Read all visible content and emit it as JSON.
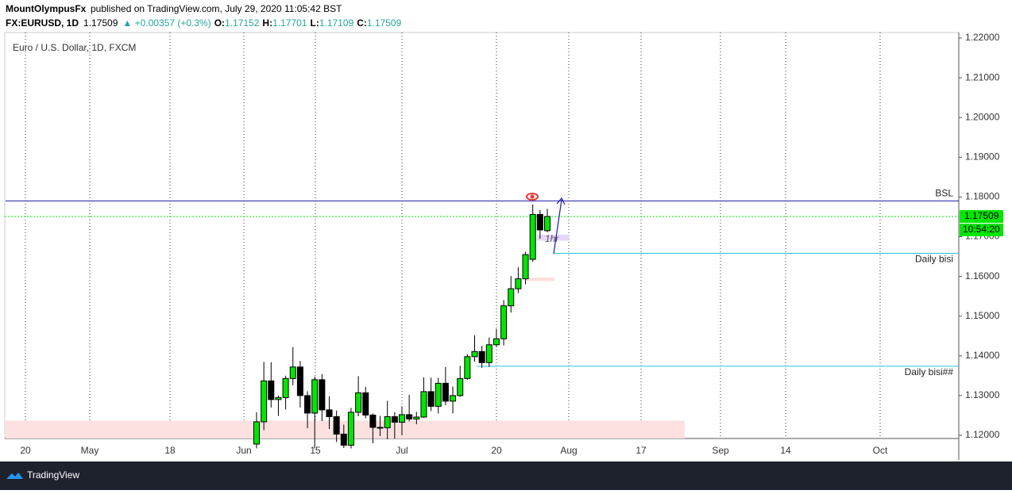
{
  "header": {
    "author": "MountOlympusFx",
    "published": "published on TradingView.com, July 29, 2020 11:05:42 BST",
    "symbol": "FX:EURUSD, 1D",
    "last": "1.17509",
    "change": "▲ +0.00357 (+0.3%)",
    "ohlc": [
      {
        "label": "O:",
        "value": "1.17152"
      },
      {
        "label": "H:",
        "value": "1.17701"
      },
      {
        "label": "L:",
        "value": "1.17109"
      },
      {
        "label": "C:",
        "value": "1.17509"
      }
    ]
  },
  "footer": {
    "brand": "TradingView"
  },
  "chart_data": {
    "type": "candlestick",
    "title": "Euro / U.S. Dollar, 1D, FXCM",
    "x": [
      "Jun 3",
      "Jun 4",
      "Jun 5",
      "Jun 8",
      "Jun 9",
      "Jun 10",
      "Jun 11",
      "Jun 12",
      "Jun 15",
      "Jun 16",
      "Jun 17",
      "Jun 18",
      "Jun 19",
      "Jun 22",
      "Jun 23",
      "Jun 24",
      "Jun 25",
      "Jun 26",
      "Jun 29",
      "Jun 30",
      "Jul 1",
      "Jul 2",
      "Jul 3",
      "Jul 6",
      "Jul 7",
      "Jul 8",
      "Jul 9",
      "Jul 10",
      "Jul 13",
      "Jul 14",
      "Jul 15",
      "Jul 16",
      "Jul 17",
      "Jul 20",
      "Jul 21",
      "Jul 22",
      "Jul 23",
      "Jul 24",
      "Jul 27",
      "Jul 28",
      "Jul 29"
    ],
    "open": [
      1.1178,
      1.1234,
      1.1337,
      1.129,
      1.1295,
      1.1343,
      1.1372,
      1.13,
      1.1256,
      1.134,
      1.1264,
      1.1247,
      1.1203,
      1.1175,
      1.1258,
      1.1307,
      1.1251,
      1.122,
      1.1219,
      1.1247,
      1.1233,
      1.1252,
      1.1241,
      1.1246,
      1.131,
      1.1273,
      1.1331,
      1.1286,
      1.13,
      1.1343,
      1.1398,
      1.1411,
      1.1383,
      1.1428,
      1.1443,
      1.1526,
      1.1569,
      1.1594,
      1.1643,
      1.1756,
      1.17152
    ],
    "high": [
      1.1258,
      1.1385,
      1.1384,
      1.13,
      1.135,
      1.1422,
      1.1387,
      1.1311,
      1.1348,
      1.1354,
      1.1298,
      1.1262,
      1.1227,
      1.1269,
      1.1349,
      1.1322,
      1.1255,
      1.1249,
      1.1287,
      1.1258,
      1.1273,
      1.1302,
      1.1259,
      1.1346,
      1.1345,
      1.1345,
      1.1372,
      1.1323,
      1.1375,
      1.1404,
      1.1452,
      1.1425,
      1.1446,
      1.1468,
      1.154,
      1.1601,
      1.1623,
      1.1662,
      1.1781,
      1.1767,
      1.17701
    ],
    "low": [
      1.1167,
      1.1213,
      1.127,
      1.1249,
      1.1265,
      1.1326,
      1.127,
      1.1218,
      1.1167,
      1.1236,
      1.1216,
      1.1183,
      1.1168,
      1.1167,
      1.1248,
      1.1243,
      1.118,
      1.1198,
      1.119,
      1.1192,
      1.12,
      1.1235,
      1.1228,
      1.1244,
      1.1261,
      1.1255,
      1.1276,
      1.1255,
      1.1297,
      1.134,
      1.1385,
      1.137,
      1.1372,
      1.1422,
      1.1426,
      1.1509,
      1.1558,
      1.158,
      1.1637,
      1.1695,
      1.17109
    ],
    "close": [
      1.1234,
      1.1337,
      1.129,
      1.1295,
      1.1343,
      1.1372,
      1.13,
      1.1256,
      1.134,
      1.1264,
      1.1247,
      1.1203,
      1.1175,
      1.1258,
      1.1307,
      1.1251,
      1.122,
      1.1219,
      1.1247,
      1.1233,
      1.1252,
      1.1241,
      1.1246,
      1.131,
      1.1273,
      1.1331,
      1.1286,
      1.13,
      1.1343,
      1.1398,
      1.1411,
      1.1383,
      1.1428,
      1.1443,
      1.1526,
      1.1569,
      1.1594,
      1.1655,
      1.1756,
      1.1717,
      1.17509
    ],
    "up_color": "#00e600",
    "down_color": "#000000",
    "ylim": [
      1.1192,
      1.2214
    ],
    "yticks": [
      {
        "value": 1.12,
        "label": "1.12000"
      },
      {
        "value": 1.13,
        "label": "1.13000"
      },
      {
        "value": 1.14,
        "label": "1.14000"
      },
      {
        "value": 1.15,
        "label": "1.15000"
      },
      {
        "value": 1.16,
        "label": "1.16000"
      },
      {
        "value": 1.17,
        "label": "1.17000"
      },
      {
        "value": 1.18,
        "label": "1.18000"
      },
      {
        "value": 1.19,
        "label": "1.19000"
      },
      {
        "value": 1.2,
        "label": "1.20000"
      },
      {
        "value": 1.21,
        "label": "1.21000"
      },
      {
        "value": 1.22,
        "label": "1.22000"
      }
    ],
    "xtick_labels": [
      "20",
      "May",
      "18",
      "Jun",
      "15",
      "Jul",
      "20",
      "Aug",
      "17",
      "Sep",
      "14",
      "Oct"
    ],
    "grid": true,
    "last_price": 1.17509,
    "last_price_color": "#00e600",
    "countdown": "10:54:20",
    "levels": [
      {
        "name": "BSL",
        "value": 1.179,
        "color": "#1a1aa6"
      },
      {
        "name": "Daily bisi",
        "value": 1.1658,
        "color": "#26c6da"
      },
      {
        "name": "Daily bisi##",
        "value": 1.1374,
        "color": "#26c6da"
      }
    ],
    "zones": [
      {
        "low": 1.1192,
        "high": 1.1237,
        "color": "#fde0e0"
      },
      {
        "low": 1.1588,
        "high": 1.1597,
        "color": "#fcdede"
      },
      {
        "low": 1.169,
        "high": 1.1705,
        "color": "#e6d6f7",
        "name": "1hr"
      }
    ]
  }
}
